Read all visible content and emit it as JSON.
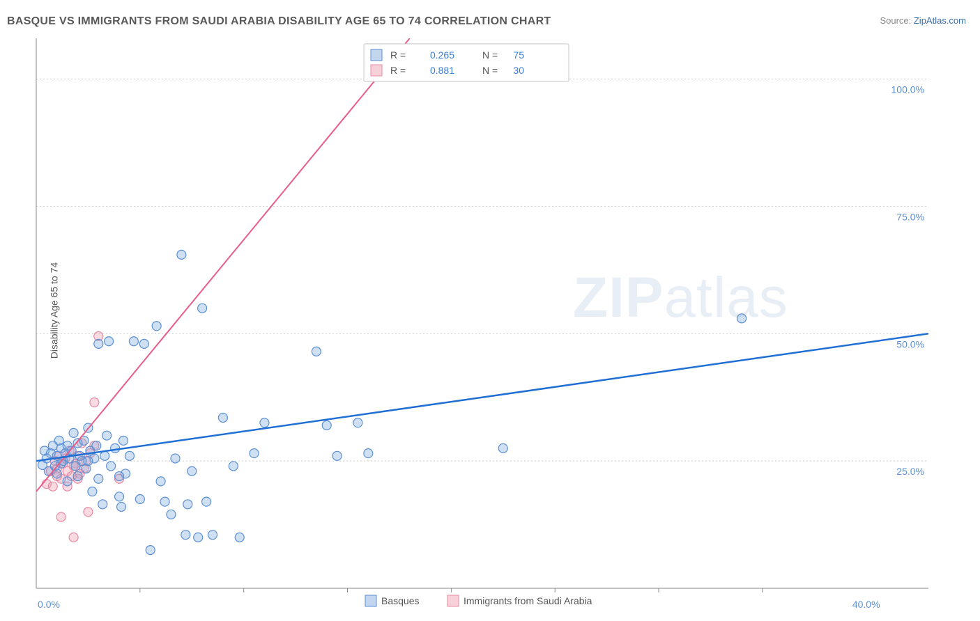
{
  "title": "BASQUE VS IMMIGRANTS FROM SAUDI ARABIA DISABILITY AGE 65 TO 74 CORRELATION CHART",
  "source_label": "Source: ",
  "source_link": "ZipAtlas.com",
  "ylabel": "Disability Age 65 to 74",
  "watermark_a": "ZIP",
  "watermark_b": "atlas",
  "chart": {
    "type": "scatter",
    "xlim": [
      0,
      43
    ],
    "ylim": [
      0,
      108
    ],
    "xtick_major_labels": [
      "0.0%",
      "40.0%"
    ],
    "xtick_major_positions": [
      0,
      40
    ],
    "xtick_minor_positions": [
      5,
      10,
      15,
      20,
      25,
      30,
      35
    ],
    "ytick_labels": [
      "25.0%",
      "50.0%",
      "75.0%",
      "100.0%"
    ],
    "ytick_positions": [
      25,
      50,
      75,
      100
    ],
    "grid_color": "#cccccc",
    "background_color": "#ffffff",
    "marker_radius": 6.5,
    "series": [
      {
        "name": "Basques",
        "color_fill": "rgba(120,165,220,0.35)",
        "color_stroke": "#5b8fd4",
        "r_label": "R =",
        "r_value": "0.265",
        "n_label": "N =",
        "n_value": "75",
        "trend": {
          "x1": 0,
          "y1": 25,
          "x2": 43,
          "y2": 50,
          "color": "#1f6fd4",
          "width": 2.5
        },
        "points": [
          [
            0.3,
            24.2
          ],
          [
            0.4,
            27.0
          ],
          [
            0.5,
            25.5
          ],
          [
            0.6,
            23.0
          ],
          [
            0.7,
            26.5
          ],
          [
            0.8,
            28.0
          ],
          [
            0.9,
            24.0
          ],
          [
            1.0,
            26.0
          ],
          [
            1.0,
            22.5
          ],
          [
            1.1,
            29.0
          ],
          [
            1.2,
            27.5
          ],
          [
            1.2,
            24.5
          ],
          [
            1.3,
            25.0
          ],
          [
            1.4,
            26.5
          ],
          [
            1.5,
            21.0
          ],
          [
            1.5,
            28.0
          ],
          [
            1.6,
            25.5
          ],
          [
            1.7,
            27.0
          ],
          [
            1.8,
            30.5
          ],
          [
            1.9,
            24.0
          ],
          [
            2.0,
            28.5
          ],
          [
            2.0,
            22.0
          ],
          [
            2.1,
            26.0
          ],
          [
            2.2,
            25.0
          ],
          [
            2.3,
            29.0
          ],
          [
            2.4,
            23.5
          ],
          [
            2.5,
            31.5
          ],
          [
            2.6,
            27.0
          ],
          [
            2.7,
            19.0
          ],
          [
            2.8,
            25.5
          ],
          [
            2.9,
            28.0
          ],
          [
            3.0,
            21.5
          ],
          [
            3.0,
            48.0
          ],
          [
            3.2,
            16.5
          ],
          [
            3.3,
            26.0
          ],
          [
            3.4,
            30.0
          ],
          [
            3.5,
            48.5
          ],
          [
            3.6,
            24.0
          ],
          [
            3.8,
            27.5
          ],
          [
            4.0,
            18.0
          ],
          [
            4.1,
            16.0
          ],
          [
            4.2,
            29.0
          ],
          [
            4.3,
            22.5
          ],
          [
            4.5,
            26.0
          ],
          [
            4.7,
            48.5
          ],
          [
            5.0,
            17.5
          ],
          [
            5.2,
            48.0
          ],
          [
            5.5,
            7.5
          ],
          [
            5.8,
            51.5
          ],
          [
            6.0,
            21.0
          ],
          [
            6.2,
            17.0
          ],
          [
            6.5,
            14.5
          ],
          [
            6.7,
            25.5
          ],
          [
            7.0,
            65.5
          ],
          [
            7.2,
            10.5
          ],
          [
            7.3,
            16.5
          ],
          [
            7.5,
            23.0
          ],
          [
            7.8,
            10.0
          ],
          [
            8.0,
            55.0
          ],
          [
            8.2,
            17.0
          ],
          [
            8.5,
            10.5
          ],
          [
            9.0,
            33.5
          ],
          [
            9.5,
            24.0
          ],
          [
            9.8,
            10.0
          ],
          [
            10.5,
            26.5
          ],
          [
            11.0,
            32.5
          ],
          [
            13.5,
            46.5
          ],
          [
            14.0,
            32.0
          ],
          [
            14.5,
            26.0
          ],
          [
            15.5,
            32.5
          ],
          [
            16.0,
            26.5
          ],
          [
            22.5,
            27.5
          ],
          [
            34.0,
            53.0
          ],
          [
            4.0,
            22.0
          ],
          [
            2.5,
            25.0
          ]
        ]
      },
      {
        "name": "Immigrants from Saudi Arabia",
        "color_fill": "rgba(240,150,170,0.35)",
        "color_stroke": "#e78ba3",
        "r_label": "R =",
        "r_value": "0.881",
        "n_label": "N =",
        "n_value": "30",
        "trend": {
          "x1": 0,
          "y1": 19,
          "x2": 18,
          "y2": 108,
          "color": "#e85d8a",
          "width": 2
        },
        "points": [
          [
            0.5,
            20.5
          ],
          [
            0.7,
            23.0
          ],
          [
            0.8,
            20.0
          ],
          [
            0.9,
            25.0
          ],
          [
            1.0,
            23.5
          ],
          [
            1.0,
            22.0
          ],
          [
            1.1,
            26.0
          ],
          [
            1.2,
            21.5
          ],
          [
            1.3,
            24.5
          ],
          [
            1.4,
            25.5
          ],
          [
            1.5,
            23.0
          ],
          [
            1.6,
            27.0
          ],
          [
            1.7,
            22.0
          ],
          [
            1.8,
            10.0
          ],
          [
            1.9,
            24.5
          ],
          [
            2.0,
            26.0
          ],
          [
            2.1,
            22.5
          ],
          [
            2.2,
            28.5
          ],
          [
            2.3,
            23.5
          ],
          [
            2.4,
            25.0
          ],
          [
            2.5,
            15.0
          ],
          [
            2.6,
            26.5
          ],
          [
            2.8,
            28.0
          ],
          [
            2.8,
            36.5
          ],
          [
            3.0,
            49.5
          ],
          [
            1.5,
            20.0
          ],
          [
            1.2,
            14.0
          ],
          [
            1.8,
            24.0
          ],
          [
            2.0,
            21.5
          ],
          [
            4.0,
            21.5
          ]
        ]
      }
    ],
    "legend": {
      "items": [
        {
          "label": "Basques",
          "fill": "rgba(120,165,220,0.45)",
          "stroke": "#5b8fd4"
        },
        {
          "label": "Immigrants from Saudi Arabia",
          "fill": "rgba(240,150,170,0.45)",
          "stroke": "#e78ba3"
        }
      ]
    }
  }
}
